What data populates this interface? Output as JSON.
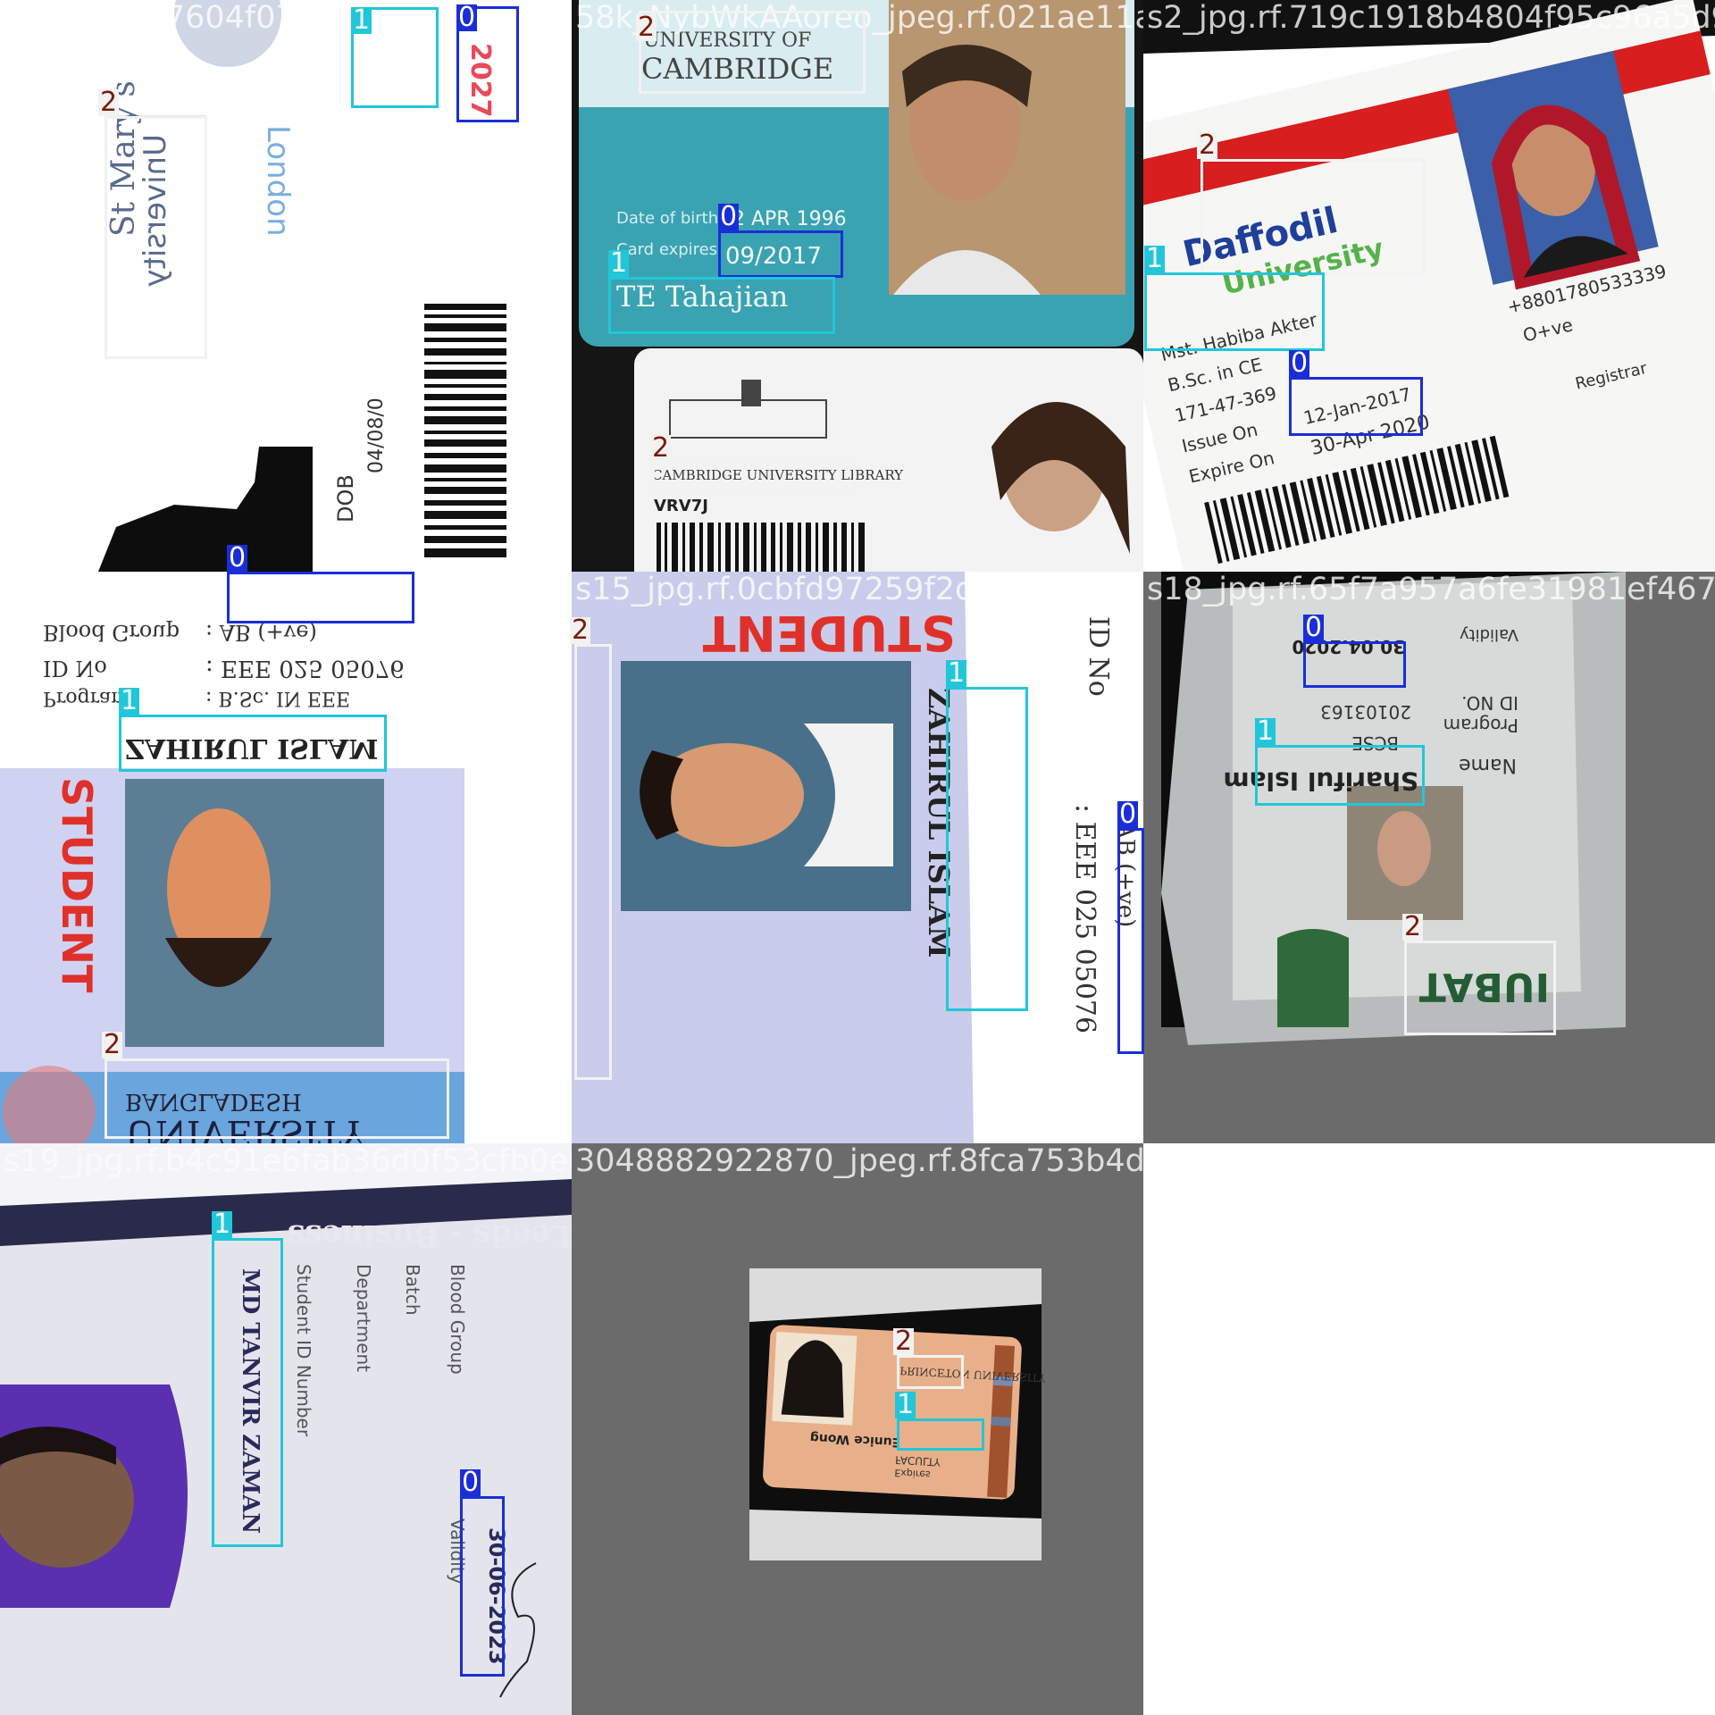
{
  "classes": [
    {
      "id": 0,
      "label": "0",
      "color": "#1a2ed8",
      "text_color": "#ffffff"
    },
    {
      "id": 1,
      "label": "1",
      "color": "#21c7d9",
      "text_color": "#ffffff"
    },
    {
      "id": 2,
      "label": "2",
      "color": "#f2f2f2",
      "text_color": "#7a1a0a"
    }
  ],
  "tiles": [
    {
      "filename": "s31_jpg.rf.7604f07e065a29f30bdefadd1cb",
      "texts": {
        "a": "St Mary's",
        "b": "University",
        "c": "London",
        "d": "2027",
        "e": "DOB",
        "f": "04/08/0"
      }
    },
    {
      "filename": "58k_NybWkAAoreo_jpeg.rf.021ae11a7921f8bf",
      "texts": {
        "a": "UNIVERSITY OF",
        "b": "CAMBRIDGE",
        "c": "Date of birth",
        "d": "2 APR 1996",
        "e": "Card expires",
        "f": "09/2017",
        "g": "TE Tahajian",
        "h": "CAMBRIDGE UNIVERSITY LIBRARY",
        "i": "VRV7J"
      }
    },
    {
      "filename": "s2_jpg.rf.719c1918b4804f95c96a5d9",
      "texts": {
        "a": "Daffodil",
        "b": "University",
        "c": "Mst. Habiba Akter",
        "d": "B.Sc. in CE",
        "e": "171-47-369",
        "f": "Issue On",
        "g": "12-Jan-2017",
        "h": "Expire On",
        "i": "30-Apr-2020",
        "j": "+8801780533339",
        "k": "O+ve",
        "l": "Registrar"
      }
    },
    {
      "filename": "s10_jpg.rf.85ae3a7edc402bfaeb1fece3b0",
      "texts": {
        "a": "Blood Group",
        "b": ": AB (+ve)",
        "c": "ID No",
        "d": ": EEE 025 05076",
        "e": "Program",
        "f": ": B.Sc. IN EEE",
        "g": "ZAHIRUL ISLAM",
        "h": "STUDENT",
        "i": "BANGLADESH",
        "j": "UNIVERSITY"
      }
    },
    {
      "filename": "s15_jpg.rf.0cbfd97259f2db0aca0efeee583",
      "texts": {
        "a": "STUDENT",
        "b": "ZAHIRUL ISLAM",
        "c": "ID No",
        "d": ": EEE 025 05076",
        "e": "AB (+ve)"
      }
    },
    {
      "filename": "s18_jpg.rf.65f7a957a6fe31981ef467ca",
      "texts": {
        "a": "Name",
        "b": "Shariful Islam",
        "c": "Program",
        "d": "BCSE",
        "e": "ID NO.",
        "f": "20103163",
        "g": "Validity",
        "h": "30.04.2020",
        "i": "IUBAT"
      }
    },
    {
      "filename": "s19_jpg.rf.b4c91e6fab36d0f53cfb0e0cab3fd4",
      "texts": {
        "a": "MD TANVIR ZAMAN",
        "b": "Student ID Number",
        "c": "Department",
        "d": "Batch",
        "e": "Blood Group",
        "f": "Validity",
        "g": "30-06-2023",
        "h": "Leeds - Business"
      }
    },
    {
      "filename": "3048882922870_jpeg.rf.8fca753b4d5493f964",
      "texts": {
        "a": "PRINCETON UNIVERSITY",
        "b": "Eunice Wong",
        "c": "FACULTY",
        "d": "Expires"
      }
    }
  ]
}
